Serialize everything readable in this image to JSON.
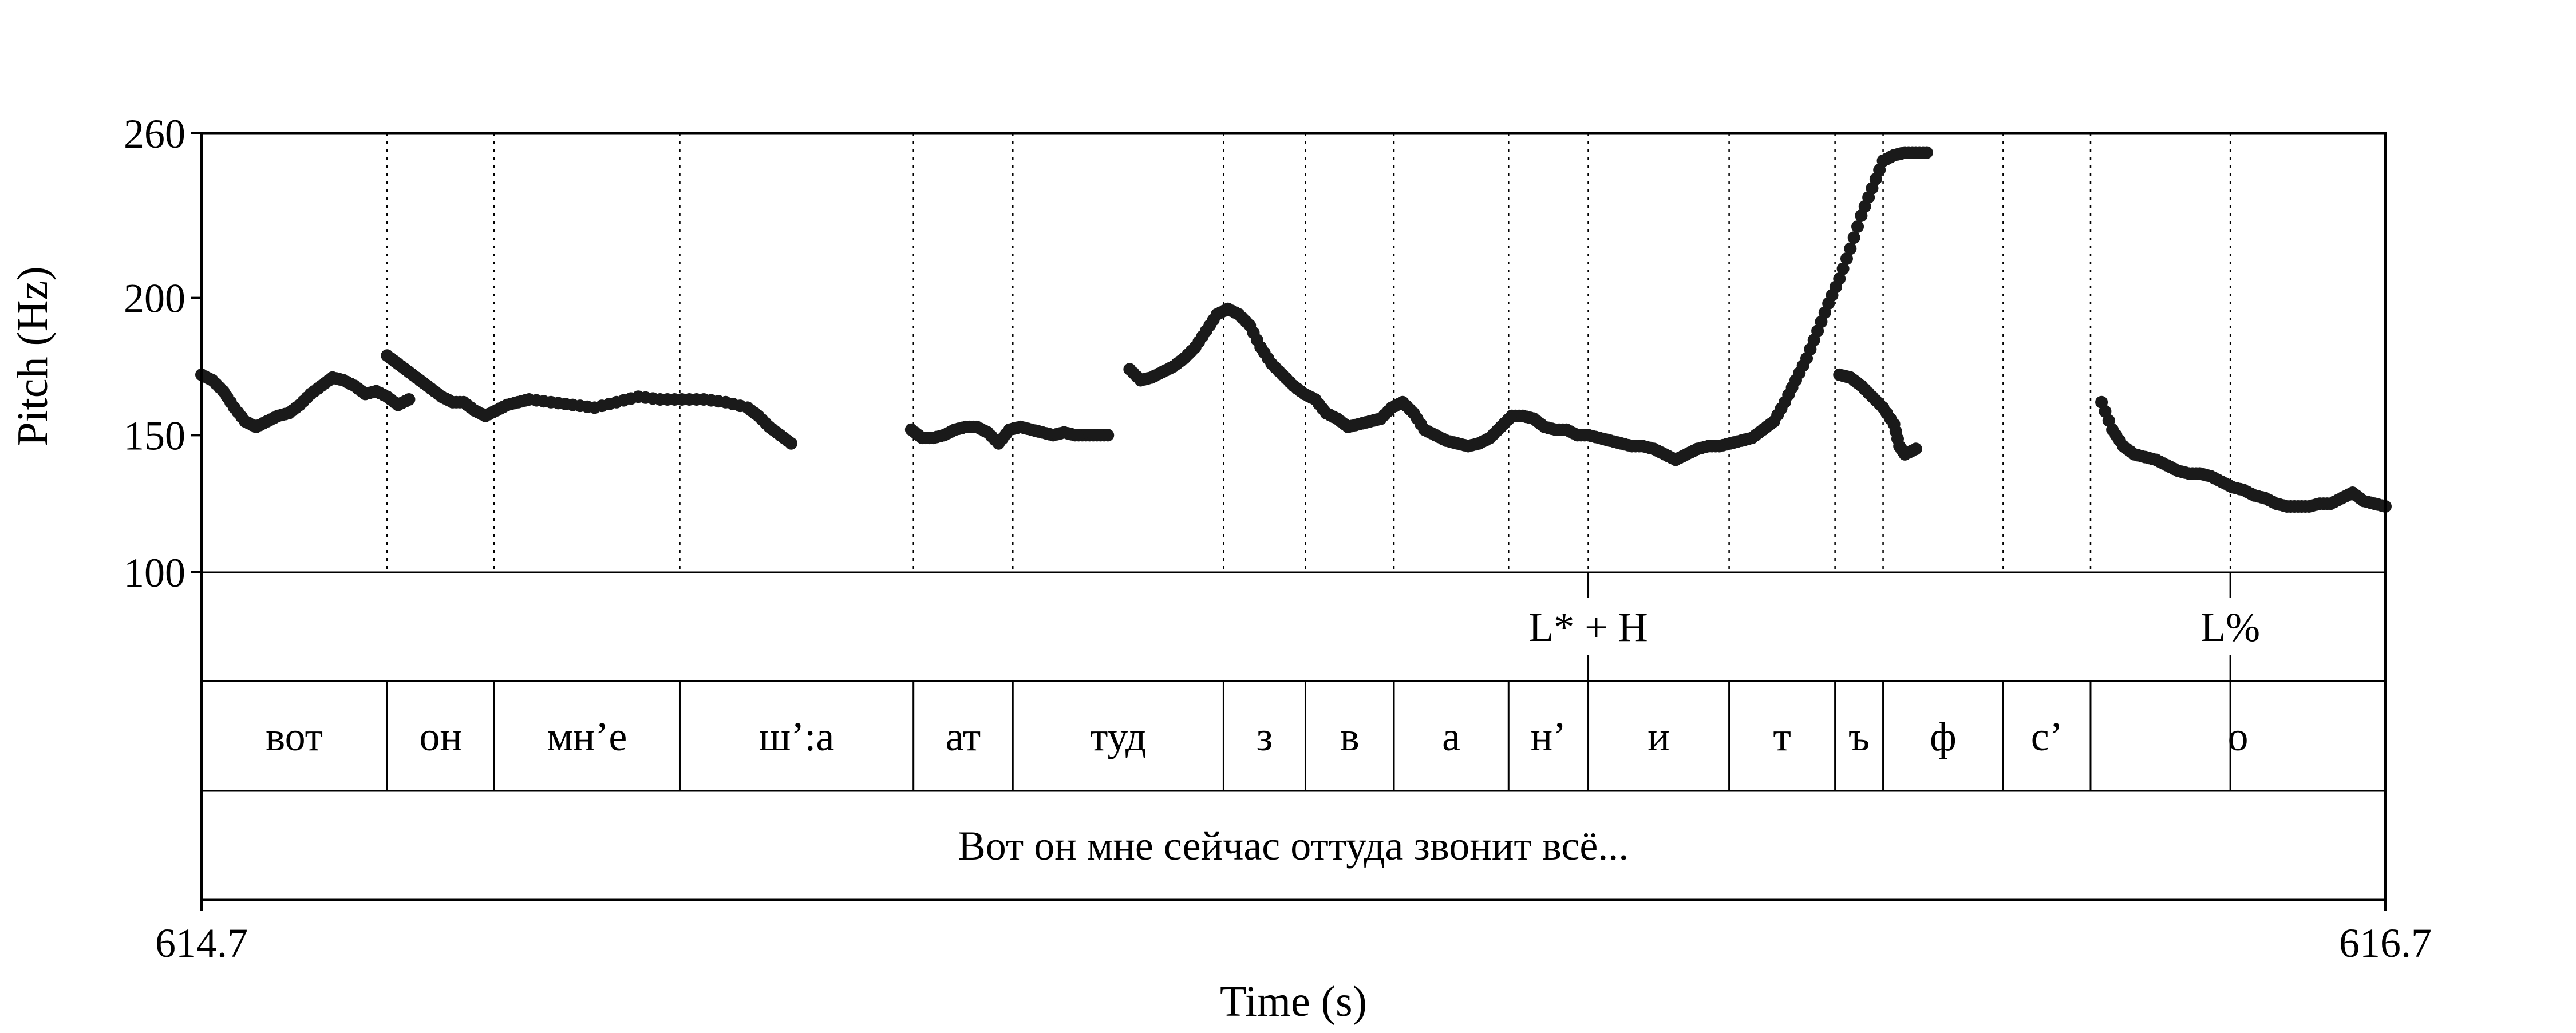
{
  "chart_data": {
    "type": "scatter",
    "xlabel": "Time (s)",
    "ylabel": "Pitch (Hz)",
    "xlim": [
      614.7,
      616.7
    ],
    "ylim": [
      100,
      260
    ],
    "x_tick_labels": [
      "614.7",
      "616.7"
    ],
    "y_ticks": [
      100,
      150,
      200,
      260
    ],
    "y_tick_labels": [
      "100",
      "150",
      "200",
      "260"
    ],
    "grid": false,
    "boundaries": [
      614.87,
      614.968,
      615.138,
      615.352,
      615.443,
      615.636,
      615.711,
      615.792,
      615.897,
      615.97,
      616.099,
      616.196,
      616.24,
      616.35,
      616.43,
      616.558
    ],
    "segments": [
      {
        "start": 614.7,
        "end": 614.87,
        "label": "вот"
      },
      {
        "start": 614.87,
        "end": 614.968,
        "label": "он"
      },
      {
        "start": 614.968,
        "end": 615.138,
        "label": "мн’е"
      },
      {
        "start": 615.138,
        "end": 615.352,
        "label": "ш’:а"
      },
      {
        "start": 615.352,
        "end": 615.443,
        "label": "ат"
      },
      {
        "start": 615.443,
        "end": 615.636,
        "label": "туд"
      },
      {
        "start": 615.636,
        "end": 615.711,
        "label": "з"
      },
      {
        "start": 615.711,
        "end": 615.792,
        "label": "в"
      },
      {
        "start": 615.792,
        "end": 615.897,
        "label": "а"
      },
      {
        "start": 615.897,
        "end": 615.97,
        "label": "н’"
      },
      {
        "start": 615.97,
        "end": 616.099,
        "label": "и"
      },
      {
        "start": 616.099,
        "end": 616.196,
        "label": "т"
      },
      {
        "start": 616.196,
        "end": 616.24,
        "label": "ъ"
      },
      {
        "start": 616.24,
        "end": 616.35,
        "label": "ф"
      },
      {
        "start": 616.35,
        "end": 616.43,
        "label": "с’"
      },
      {
        "start": 616.43,
        "end": 616.7,
        "label": "о"
      }
    ],
    "tones": [
      {
        "time": 615.97,
        "label": "L* + H"
      },
      {
        "time": 616.558,
        "label": "L%"
      }
    ],
    "sentence": "Вот он мне сейчас оттуда звонит всё...",
    "pitch_series": [
      {
        "points": [
          [
            614.7,
            172
          ],
          [
            614.71,
            170
          ],
          [
            614.72,
            166
          ],
          [
            614.73,
            160
          ],
          [
            614.74,
            155
          ],
          [
            614.75,
            153
          ],
          [
            614.76,
            155
          ],
          [
            614.77,
            157
          ],
          [
            614.78,
            158
          ],
          [
            614.79,
            161
          ],
          [
            614.8,
            165
          ],
          [
            614.81,
            168
          ],
          [
            614.82,
            171
          ],
          [
            614.83,
            170
          ],
          [
            614.84,
            168
          ],
          [
            614.85,
            165
          ],
          [
            614.86,
            166
          ],
          [
            614.87,
            164
          ],
          [
            614.88,
            161
          ],
          [
            614.89,
            163
          ]
        ]
      },
      {
        "points": [
          [
            614.87,
            179
          ],
          [
            614.88,
            176
          ],
          [
            614.89,
            173
          ],
          [
            614.9,
            170
          ],
          [
            614.91,
            167
          ],
          [
            614.92,
            164
          ],
          [
            614.93,
            162
          ],
          [
            614.94,
            162
          ],
          [
            614.95,
            159
          ],
          [
            614.96,
            157
          ],
          [
            614.97,
            159
          ],
          [
            614.98,
            161
          ],
          [
            614.99,
            162
          ],
          [
            615.0,
            163
          ],
          [
            615.02,
            162
          ],
          [
            615.04,
            161
          ],
          [
            615.06,
            160
          ],
          [
            615.08,
            162
          ],
          [
            615.1,
            164
          ],
          [
            615.12,
            163
          ],
          [
            615.14,
            163
          ],
          [
            615.16,
            163
          ],
          [
            615.18,
            162
          ],
          [
            615.2,
            160
          ],
          [
            615.21,
            157
          ],
          [
            615.22,
            153
          ],
          [
            615.23,
            150
          ],
          [
            615.24,
            147
          ]
        ]
      },
      {
        "points": [
          [
            615.35,
            152
          ],
          [
            615.36,
            149
          ],
          [
            615.37,
            149
          ],
          [
            615.38,
            150
          ],
          [
            615.39,
            152
          ],
          [
            615.4,
            153
          ],
          [
            615.41,
            153
          ],
          [
            615.42,
            151
          ],
          [
            615.43,
            147
          ],
          [
            615.44,
            152
          ],
          [
            615.45,
            153
          ],
          [
            615.46,
            152
          ],
          [
            615.47,
            151
          ],
          [
            615.48,
            150
          ],
          [
            615.49,
            151
          ],
          [
            615.5,
            150
          ],
          [
            615.51,
            150
          ],
          [
            615.52,
            150
          ],
          [
            615.53,
            150
          ]
        ]
      },
      {
        "points": [
          [
            615.55,
            174
          ],
          [
            615.56,
            170
          ],
          [
            615.57,
            171
          ],
          [
            615.58,
            173
          ],
          [
            615.59,
            175
          ],
          [
            615.6,
            178
          ],
          [
            615.61,
            182
          ],
          [
            615.62,
            188
          ],
          [
            615.63,
            194
          ],
          [
            615.64,
            196
          ],
          [
            615.65,
            194
          ],
          [
            615.66,
            190
          ],
          [
            615.67,
            182
          ],
          [
            615.68,
            176
          ],
          [
            615.69,
            172
          ],
          [
            615.7,
            168
          ],
          [
            615.71,
            165
          ],
          [
            615.72,
            163
          ],
          [
            615.73,
            158
          ],
          [
            615.74,
            156
          ],
          [
            615.75,
            153
          ],
          [
            615.76,
            154
          ],
          [
            615.77,
            155
          ],
          [
            615.78,
            156
          ],
          [
            615.79,
            160
          ],
          [
            615.8,
            162
          ],
          [
            615.81,
            158
          ],
          [
            615.82,
            152
          ],
          [
            615.83,
            150
          ],
          [
            615.84,
            148
          ],
          [
            615.85,
            147
          ],
          [
            615.86,
            146
          ],
          [
            615.87,
            147
          ],
          [
            615.88,
            149
          ],
          [
            615.89,
            153
          ],
          [
            615.9,
            157
          ],
          [
            615.91,
            157
          ],
          [
            615.92,
            156
          ],
          [
            615.93,
            153
          ],
          [
            615.94,
            152
          ],
          [
            615.95,
            152
          ],
          [
            615.96,
            150
          ],
          [
            615.97,
            150
          ],
          [
            615.98,
            149
          ],
          [
            615.99,
            148
          ],
          [
            616.0,
            147
          ],
          [
            616.01,
            146
          ],
          [
            616.02,
            146
          ],
          [
            616.03,
            145
          ],
          [
            616.04,
            143
          ],
          [
            616.05,
            141
          ],
          [
            616.06,
            143
          ],
          [
            616.07,
            145
          ],
          [
            616.08,
            146
          ],
          [
            616.09,
            146
          ],
          [
            616.1,
            147
          ],
          [
            616.11,
            148
          ],
          [
            616.12,
            149
          ],
          [
            616.13,
            152
          ],
          [
            616.14,
            155
          ],
          [
            616.15,
            162
          ],
          [
            616.16,
            170
          ],
          [
            616.17,
            178
          ],
          [
            616.18,
            188
          ],
          [
            616.19,
            198
          ],
          [
            616.2,
            207
          ],
          [
            616.21,
            218
          ],
          [
            616.22,
            230
          ],
          [
            616.23,
            240
          ],
          [
            616.24,
            250
          ],
          [
            616.25,
            252
          ],
          [
            616.26,
            253
          ],
          [
            616.27,
            253
          ],
          [
            616.28,
            253
          ]
        ]
      },
      {
        "points": [
          [
            616.2,
            172
          ],
          [
            616.21,
            171
          ],
          [
            616.22,
            168
          ],
          [
            616.23,
            164
          ],
          [
            616.24,
            160
          ],
          [
            616.25,
            154
          ],
          [
            616.255,
            146
          ],
          [
            616.26,
            143
          ],
          [
            616.27,
            145
          ]
        ]
      },
      {
        "points": [
          [
            616.44,
            162
          ],
          [
            616.45,
            152
          ],
          [
            616.46,
            146
          ],
          [
            616.47,
            143
          ],
          [
            616.48,
            142
          ],
          [
            616.49,
            141
          ],
          [
            616.5,
            139
          ],
          [
            616.51,
            137
          ],
          [
            616.52,
            136
          ],
          [
            616.53,
            136
          ],
          [
            616.54,
            135
          ],
          [
            616.55,
            133
          ],
          [
            616.56,
            131
          ],
          [
            616.57,
            130
          ],
          [
            616.58,
            128
          ],
          [
            616.59,
            127
          ],
          [
            616.6,
            125
          ],
          [
            616.61,
            124
          ],
          [
            616.62,
            124
          ],
          [
            616.63,
            124
          ],
          [
            616.64,
            125
          ],
          [
            616.65,
            125
          ],
          [
            616.66,
            127
          ],
          [
            616.67,
            129
          ],
          [
            616.68,
            126
          ],
          [
            616.69,
            125
          ],
          [
            616.7,
            124
          ]
        ]
      }
    ]
  }
}
